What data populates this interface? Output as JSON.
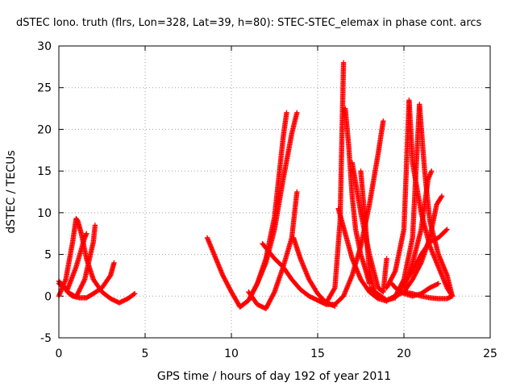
{
  "chart_data": {
    "type": "scatter",
    "title": "dSTEC Iono. truth (flrs, Lon=328, Lat=39, h=80): STEC-STEC_elemax in phase cont. arcs",
    "xlabel": "GPS time / hours of day 192 of year 2011",
    "ylabel": "dSTEC  / TECUs",
    "xlim": [
      0,
      25
    ],
    "ylim": [
      -5,
      30
    ],
    "xticks": [
      0,
      5,
      10,
      15,
      20,
      25
    ],
    "yticks": [
      -5,
      0,
      5,
      10,
      15,
      20,
      25,
      30
    ],
    "grid": true,
    "marker": "+",
    "color": "#ff0000",
    "arcs": [
      {
        "x": [
          0.0,
          0.2,
          0.4,
          0.6,
          0.8
        ],
        "y": [
          1.8,
          1.3,
          0.8,
          0.3,
          0.0
        ]
      },
      {
        "x": [
          0.0,
          0.4,
          0.8,
          1.0,
          1.1,
          1.3,
          1.6,
          2.0,
          2.5,
          3.0,
          3.5,
          4.0,
          4.4
        ],
        "y": [
          0.0,
          2.0,
          6.5,
          9.3,
          9.0,
          7.5,
          4.5,
          2.0,
          0.5,
          -0.3,
          -0.8,
          -0.3,
          0.3
        ]
      },
      {
        "x": [
          0.0,
          0.5,
          1.0,
          1.5,
          1.6
        ],
        "y": [
          1.5,
          0.8,
          3.5,
          7.0,
          7.5
        ]
      },
      {
        "x": [
          0.5,
          1.0,
          1.5,
          2.0,
          2.1
        ],
        "y": [
          0.5,
          -0.1,
          2.0,
          6.5,
          8.5
        ]
      },
      {
        "x": [
          0.8,
          1.2,
          1.6,
          2.0,
          2.5,
          3.0,
          3.2
        ],
        "y": [
          0.0,
          -0.2,
          -0.2,
          0.3,
          1.0,
          2.5,
          4.0
        ]
      },
      {
        "x": [
          8.6,
          9.0,
          9.5,
          10.0,
          10.5,
          11.0,
          11.5,
          12.0,
          12.5,
          13.0,
          13.2
        ],
        "y": [
          7.0,
          5.0,
          2.5,
          0.5,
          -1.3,
          -0.5,
          1.5,
          4.5,
          9.5,
          19.0,
          22.0
        ]
      },
      {
        "x": [
          10.5,
          11.0,
          11.5,
          12.0,
          12.5,
          13.0,
          13.5,
          13.8
        ],
        "y": [
          -1.3,
          -0.5,
          1.5,
          4.0,
          8.0,
          14.0,
          19.5,
          22.0
        ]
      },
      {
        "x": [
          11.0,
          11.5,
          12.0,
          12.5,
          13.0,
          13.5,
          13.8
        ],
        "y": [
          0.5,
          -1.0,
          -1.5,
          0.5,
          3.5,
          7.0,
          12.5
        ]
      },
      {
        "x": [
          11.8,
          12.5,
          13.0,
          13.5,
          14.0,
          14.5,
          15.0,
          15.5,
          16.0
        ],
        "y": [
          6.3,
          4.5,
          3.5,
          2.0,
          0.8,
          0.0,
          -0.5,
          -0.8,
          -1.2
        ]
      },
      {
        "x": [
          13.6,
          14.0,
          14.5,
          15.0,
          15.5,
          16.0,
          16.3,
          16.5
        ],
        "y": [
          7.0,
          4.5,
          2.0,
          0.3,
          -0.8,
          1.0,
          9.0,
          28.0
        ]
      },
      {
        "x": [
          15.0,
          15.5,
          16.0,
          16.5,
          17.0,
          17.5,
          18.0,
          18.5,
          18.8
        ],
        "y": [
          -0.5,
          -1.0,
          -1.0,
          0.0,
          2.5,
          6.0,
          11.0,
          17.0,
          21.0
        ]
      },
      {
        "x": [
          16.2,
          16.6,
          17.0,
          17.5,
          18.0,
          18.5,
          19.0
        ],
        "y": [
          10.5,
          7.5,
          4.5,
          2.0,
          0.5,
          -0.3,
          -0.6
        ]
      },
      {
        "x": [
          16.6,
          16.8,
          17.0,
          17.2,
          17.5,
          17.8,
          18.0
        ],
        "y": [
          22.5,
          18.0,
          12.0,
          8.0,
          5.0,
          3.0,
          1.5
        ]
      },
      {
        "x": [
          17.0,
          17.5,
          18.0,
          18.5,
          18.8,
          19.0
        ],
        "y": [
          16.0,
          10.0,
          5.0,
          1.0,
          0.5,
          4.5
        ]
      },
      {
        "x": [
          17.5,
          18.0,
          18.3,
          18.5,
          19.0,
          19.5,
          20.0,
          20.5,
          21.0,
          21.5,
          22.0,
          22.5,
          22.8
        ],
        "y": [
          15.0,
          3.0,
          0.5,
          0.0,
          -0.5,
          0.0,
          0.5,
          0.3,
          0.0,
          -0.2,
          -0.3,
          -0.3,
          0.0
        ]
      },
      {
        "x": [
          18.0,
          19.0,
          19.5,
          20.0,
          20.5,
          21.0,
          21.5,
          22.0,
          22.5
        ],
        "y": [
          1.0,
          -0.5,
          -0.2,
          1.5,
          3.0,
          5.0,
          6.5,
          7.0,
          8.0
        ]
      },
      {
        "x": [
          19.0,
          19.5,
          20.0,
          20.3,
          20.5,
          21.0,
          21.5,
          22.0,
          22.5,
          22.8
        ],
        "y": [
          1.0,
          3.0,
          8.0,
          23.5,
          16.0,
          10.0,
          6.0,
          3.5,
          1.0,
          0.0
        ]
      },
      {
        "x": [
          19.5,
          20.0,
          20.5,
          20.9,
          21.2,
          21.5,
          22.0,
          22.5,
          22.8
        ],
        "y": [
          0.0,
          2.0,
          7.0,
          23.0,
          15.0,
          9.0,
          5.0,
          2.5,
          0.0
        ]
      },
      {
        "x": [
          20.0,
          20.5,
          21.0,
          21.4,
          21.6
        ],
        "y": [
          1.0,
          4.0,
          8.0,
          14.0,
          15.0
        ]
      },
      {
        "x": [
          20.0,
          20.5,
          21.0,
          21.5,
          21.9,
          22.2
        ],
        "y": [
          0.5,
          2.0,
          4.0,
          7.0,
          11.0,
          12.0
        ]
      },
      {
        "x": [
          19.3,
          19.5,
          20.0,
          20.5,
          21.0,
          21.5,
          22.0
        ],
        "y": [
          1.5,
          1.0,
          0.3,
          0.0,
          0.3,
          1.0,
          1.5
        ]
      }
    ]
  }
}
